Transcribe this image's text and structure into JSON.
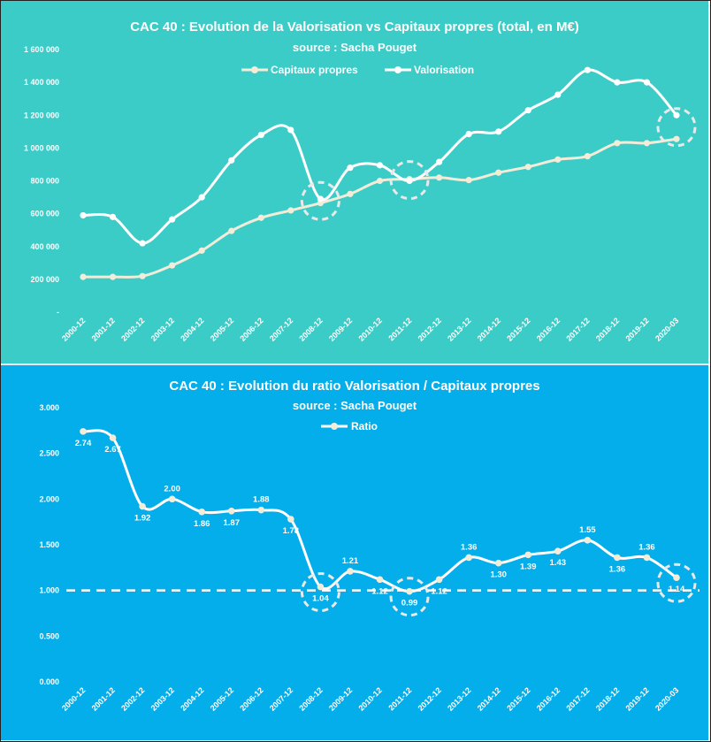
{
  "chart_data": [
    {
      "type": "line",
      "title": "CAC 40 : Evolution de la Valorisation vs Capitaux propres (total, en M€)",
      "subtitle": "source : Sacha Pouget",
      "legend_position": "top",
      "categories": [
        "2000-12",
        "2001-12",
        "2002-12",
        "2003-12",
        "2004-12",
        "2005-12",
        "2006-12",
        "2007-12",
        "2008-12",
        "2009-12",
        "2010-12",
        "2011-12",
        "2012-12",
        "2013-12",
        "2014-12",
        "2015-12",
        "2016-12",
        "2017-12",
        "2018-12",
        "2019-12",
        "2020-03"
      ],
      "series": [
        {
          "name": "Capitaux propres",
          "color": "#f2ecd8",
          "values": [
            215000,
            215000,
            220000,
            285000,
            375000,
            495000,
            575000,
            620000,
            665000,
            720000,
            800000,
            810000,
            820000,
            805000,
            850000,
            885000,
            930000,
            950000,
            1030000,
            1030000,
            1055000
          ]
        },
        {
          "name": "Valorisation",
          "color": "#ffffff",
          "values": [
            590000,
            580000,
            420000,
            565000,
            700000,
            925000,
            1080000,
            1110000,
            690000,
            880000,
            895000,
            800000,
            915000,
            1085000,
            1100000,
            1230000,
            1325000,
            1475000,
            1400000,
            1400000,
            1200000
          ]
        }
      ],
      "ylim": [
        0,
        1600000
      ],
      "yticks": [
        {
          "value": 0,
          "label": "-"
        },
        {
          "value": 200000,
          "label": "200 000"
        },
        {
          "value": 400000,
          "label": "400 000"
        },
        {
          "value": 600000,
          "label": "600 000"
        },
        {
          "value": 800000,
          "label": "800 000"
        },
        {
          "value": 1000000,
          "label": "1 000 000"
        },
        {
          "value": 1200000,
          "label": "1 200 000"
        },
        {
          "value": 1400000,
          "label": "1 400 000"
        },
        {
          "value": 1600000,
          "label": "1 600 000"
        }
      ],
      "highlighted_categories": [
        "2008-12",
        "2011-12",
        "2020-03"
      ]
    },
    {
      "type": "line",
      "title": "CAC 40 : Evolution du ratio Valorisation / Capitaux propres",
      "subtitle": "source : Sacha Pouget",
      "legend_position": "top",
      "categories": [
        "2000-12",
        "2001-12",
        "2002-12",
        "2003-12",
        "2004-12",
        "2005-12",
        "2006-12",
        "2007-12",
        "2008-12",
        "2009-12",
        "2010-12",
        "2011-12",
        "2012-12",
        "2013-12",
        "2014-12",
        "2015-12",
        "2016-12",
        "2017-12",
        "2018-12",
        "2019-12",
        "2020-03"
      ],
      "series": [
        {
          "name": "Ratio",
          "color": "#ffffff",
          "marker_color": "#f2ecd8",
          "values": [
            2.74,
            2.67,
            1.92,
            2.0,
            1.86,
            1.87,
            1.88,
            1.78,
            1.04,
            1.21,
            1.12,
            0.99,
            1.12,
            1.36,
            1.3,
            1.39,
            1.43,
            1.55,
            1.36,
            1.36,
            1.14
          ]
        }
      ],
      "data_labels": [
        "2.74",
        "2.67",
        "1.92",
        "2.00",
        "1.86",
        "1.87",
        "1.88",
        "1.78",
        "1.04",
        "1.21",
        "1.12",
        "0.99",
        "1.12",
        "1.36",
        "1.30",
        "1.39",
        "1.43",
        "1.55",
        "1.36",
        "1.36",
        "1.14"
      ],
      "reference_line": 1.0,
      "ylim": [
        0,
        3
      ],
      "yticks": [
        {
          "value": 0,
          "label": "0.000"
        },
        {
          "value": 0.5,
          "label": "0.500"
        },
        {
          "value": 1,
          "label": "1.000"
        },
        {
          "value": 1.5,
          "label": "1.500"
        },
        {
          "value": 2,
          "label": "2.000"
        },
        {
          "value": 2.5,
          "label": "2.500"
        },
        {
          "value": 3,
          "label": "3.000"
        }
      ],
      "highlighted_categories": [
        "2008-12",
        "2011-12",
        "2020-03"
      ]
    }
  ]
}
